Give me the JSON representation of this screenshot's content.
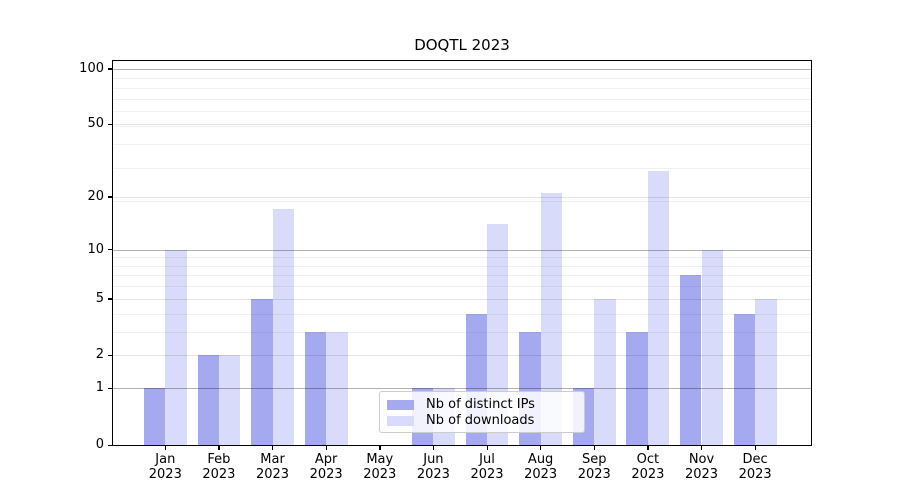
{
  "figure_title": "DOQTL 2023",
  "chart_data": {
    "type": "bar",
    "title": "DOQTL 2023",
    "categories": [
      "Jan",
      "Feb",
      "Mar",
      "Apr",
      "May",
      "Jun",
      "Jul",
      "Aug",
      "Sep",
      "Oct",
      "Nov",
      "Dec"
    ],
    "year_label": "2023",
    "series": [
      {
        "name": "Nb of distinct IPs",
        "color": "#a4a9f0",
        "values": [
          1,
          2,
          5,
          3,
          0,
          1,
          4,
          3,
          1,
          3,
          7,
          4
        ]
      },
      {
        "name": "Nb of downloads",
        "color": "#d8dbf9",
        "values": [
          10,
          2,
          17,
          3,
          0,
          1,
          14,
          21,
          5,
          28,
          10,
          5
        ]
      }
    ],
    "yticks": [
      0,
      1,
      2,
      5,
      10,
      20,
      50,
      100
    ],
    "yscale": "log1p",
    "ylim": [
      0,
      110
    ],
    "xlabel": "",
    "ylabel": "",
    "grid": "horizontal",
    "legend_position": "lower center",
    "background_color": "#ffffff",
    "decade_grid_color": "#b3b3b3",
    "major_grid_color": "#e4e4e4",
    "minor_grid_color": "#f1f1f1"
  }
}
